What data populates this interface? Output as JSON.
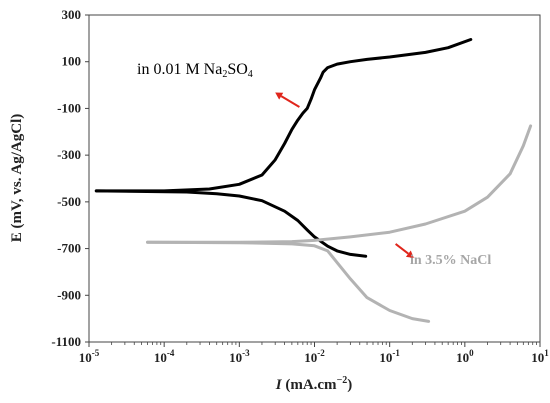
{
  "chart_data": {
    "type": "line",
    "xscale": "log",
    "xlim": [
      1e-05,
      10
    ],
    "ylim": [
      -1100,
      300
    ],
    "xlabel": {
      "main": "I",
      "units": " (mA.cm",
      "sup": "−2",
      "close": ")"
    },
    "ylabel": "E (mV, vs. Ag/AgCl)",
    "x_ticks": [
      {
        "base": "10",
        "exp": "-5",
        "value": 1e-05
      },
      {
        "base": "10",
        "exp": "-4",
        "value": 0.0001
      },
      {
        "base": "10",
        "exp": "-3",
        "value": 0.001
      },
      {
        "base": "10",
        "exp": "-2",
        "value": 0.01
      },
      {
        "base": "10",
        "exp": "-1",
        "value": 0.1
      },
      {
        "base": "10",
        "exp": "0",
        "value": 1
      },
      {
        "base": "10",
        "exp": "1",
        "value": 10
      }
    ],
    "y_ticks": [
      300,
      100,
      -100,
      -300,
      -500,
      -700,
      -900,
      -1100
    ],
    "series": [
      {
        "color": "#000000",
        "label": {
          "text": "in 0.01 M Na",
          "sub1": "2",
          "mid": "SO",
          "sub2": "4"
        },
        "anodic": {
          "x": [
            1.25e-05,
            0.0001,
            0.0004,
            0.001,
            0.002,
            0.003,
            0.004,
            0.005,
            0.006,
            0.007,
            0.008,
            0.009,
            0.01,
            0.012,
            0.013,
            0.015,
            0.02,
            0.03,
            0.05,
            0.1,
            0.3,
            0.6,
            1.2
          ],
          "y": [
            -453,
            -453,
            -445,
            -425,
            -385,
            -320,
            -250,
            -190,
            -150,
            -120,
            -100,
            -60,
            -20,
            30,
            55,
            75,
            90,
            100,
            110,
            120,
            140,
            160,
            195
          ]
        },
        "cathodic": {
          "x": [
            1.25e-05,
            0.0002,
            0.0005,
            0.001,
            0.002,
            0.004,
            0.006,
            0.008,
            0.01,
            0.015,
            0.02,
            0.03,
            0.048
          ],
          "y": [
            -453,
            -458,
            -465,
            -475,
            -495,
            -540,
            -580,
            -620,
            -650,
            -690,
            -710,
            -725,
            -733
          ]
        }
      },
      {
        "color": "#b3b3b3",
        "label": {
          "text": "in 3.5% NaCl"
        },
        "anodic": {
          "x": [
            6e-05,
            0.001,
            0.005,
            0.01,
            0.03,
            0.1,
            0.3,
            1,
            2,
            4,
            6,
            7.5
          ],
          "y": [
            -673,
            -673,
            -670,
            -665,
            -650,
            -630,
            -595,
            -540,
            -480,
            -380,
            -260,
            -175
          ]
        },
        "cathodic": {
          "x": [
            6e-05,
            0.001,
            0.005,
            0.01,
            0.015,
            0.02,
            0.03,
            0.05,
            0.1,
            0.2,
            0.33
          ],
          "y": [
            -673,
            -675,
            -680,
            -688,
            -710,
            -760,
            -830,
            -910,
            -965,
            -1000,
            -1012
          ]
        }
      }
    ],
    "arrows": [
      {
        "color": "#e0261c",
        "from": [
          0.0063,
          -94
        ],
        "to": [
          0.003,
          -32
        ]
      },
      {
        "color": "#e0261c",
        "from": [
          0.12,
          -680
        ],
        "to": [
          0.21,
          -740
        ]
      }
    ]
  }
}
